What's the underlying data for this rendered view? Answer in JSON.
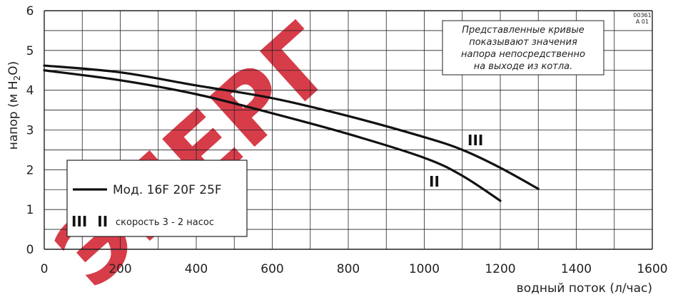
{
  "chart_data": {
    "type": "line",
    "xlabel": "водный поток (л/час)",
    "ylabel_text": "напор (м H",
    "ylabel_sub": "2",
    "ylabel_end": "O)",
    "xlim": [
      0,
      1600
    ],
    "ylim": [
      0,
      6
    ],
    "x_ticks": [
      "0",
      "200",
      "400",
      "600",
      "800",
      "1000",
      "1200",
      "1400",
      "1600"
    ],
    "y_ticks": [
      "0",
      "1",
      "2",
      "3",
      "4",
      "5",
      "6"
    ],
    "grid": true,
    "series": [
      {
        "name": "III",
        "x": [
          0,
          200,
          400,
          600,
          800,
          1000,
          1100,
          1200,
          1300
        ],
        "y": [
          4.62,
          4.45,
          4.12,
          3.8,
          3.35,
          2.82,
          2.5,
          2.05,
          1.52
        ]
      },
      {
        "name": "II",
        "x": [
          0,
          200,
          400,
          600,
          800,
          1000,
          1100,
          1200
        ],
        "y": [
          4.5,
          4.25,
          3.9,
          3.42,
          2.9,
          2.3,
          1.85,
          1.22
        ]
      }
    ],
    "annotation": {
      "lines": [
        "Представленные кривые",
        "показывают  значения",
        "напора непосредственно",
        "на выходе из котла."
      ]
    },
    "code_lines": [
      "00361",
      "A 01"
    ],
    "legend": {
      "model": "Мод. 16F 20F 25F",
      "roman": "III  II",
      "speed": "скорость 3 - 2 насос"
    },
    "watermark": "ЭНЕРГ",
    "colors": {
      "curve": "#111111",
      "grid": "#222222",
      "watermark": "#d42b3a"
    }
  }
}
